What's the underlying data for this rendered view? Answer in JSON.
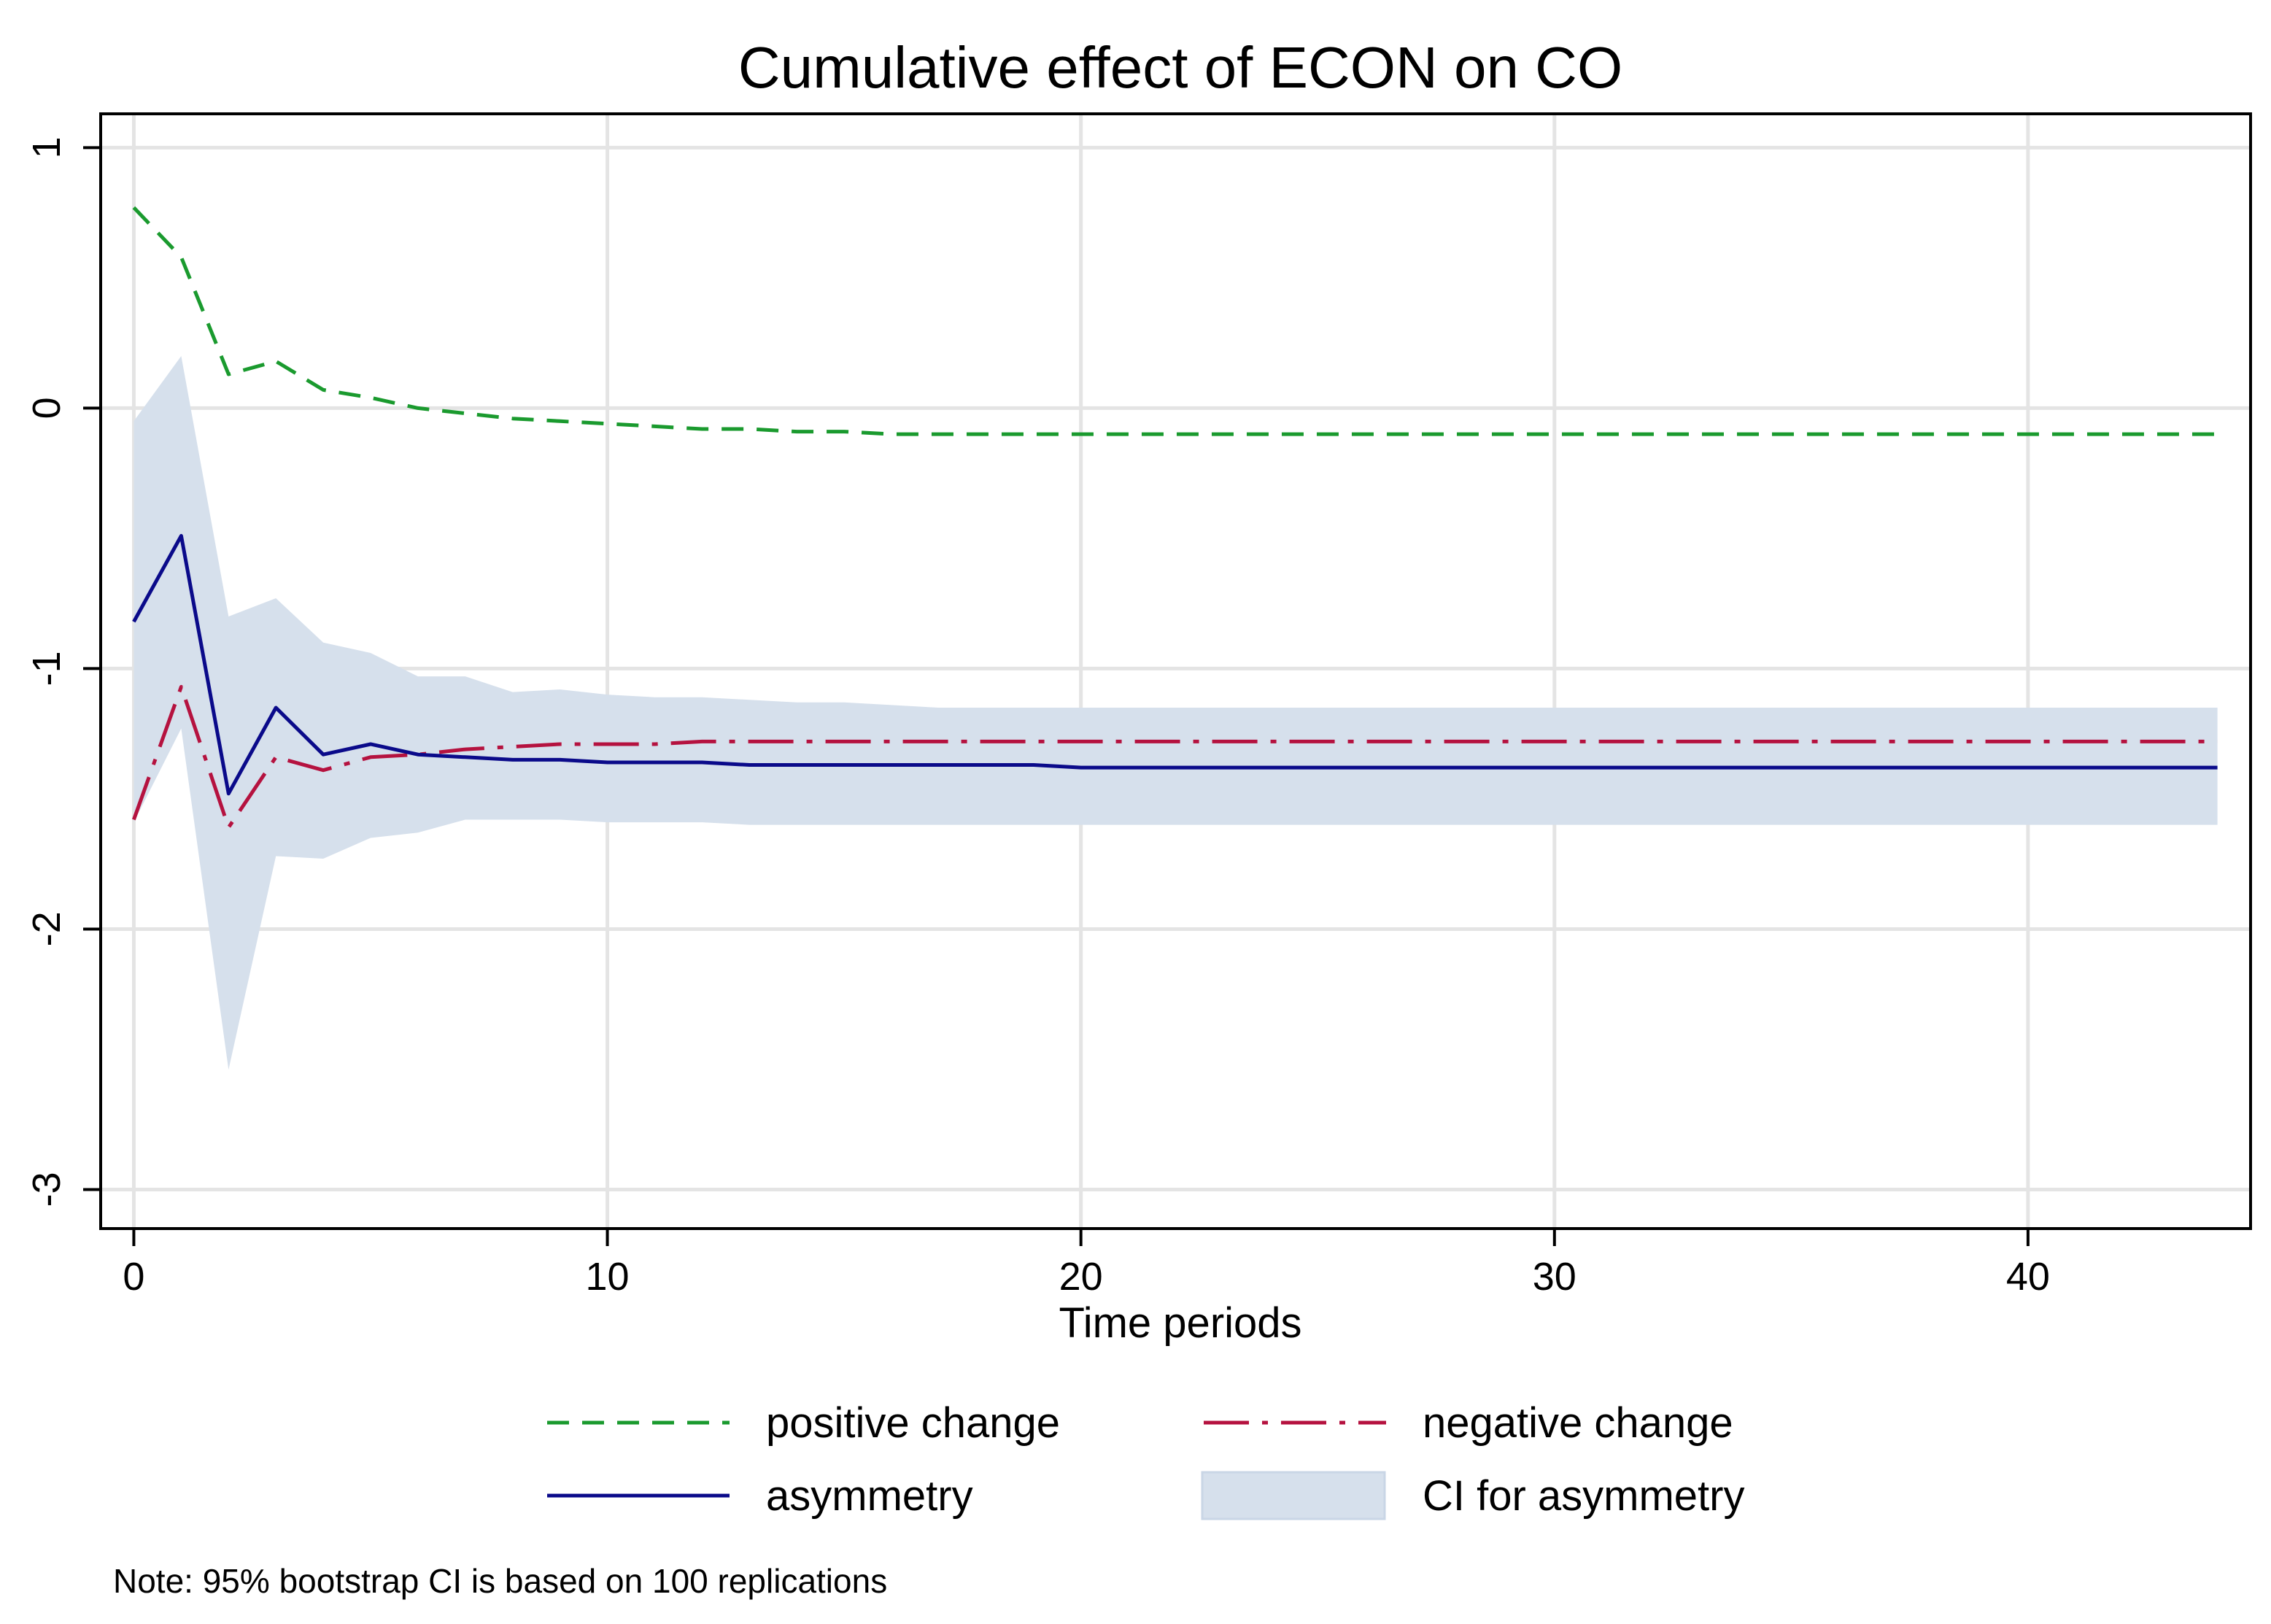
{
  "chart_data": {
    "type": "line",
    "title": "Cumulative effect of ECON on CO",
    "xlabel": "Time periods",
    "ylabel": "",
    "xlim": [
      -0.7,
      44.7
    ],
    "ylim": [
      -3.15,
      1.13
    ],
    "xticks": [
      0,
      10,
      20,
      30,
      40
    ],
    "yticks": [
      1,
      0,
      -1,
      -2,
      -3
    ],
    "xtick_labels": [
      "0",
      "10",
      "20",
      "30",
      "40"
    ],
    "ytick_labels": [
      "1",
      "0",
      "-1",
      "-2",
      "-3"
    ],
    "grid": true,
    "note": "Note: 95% bootstrap CI is based on 100 replications",
    "legend_position": "bottom",
    "x": [
      0,
      1,
      2,
      3,
      4,
      5,
      6,
      7,
      8,
      9,
      10,
      11,
      12,
      13,
      14,
      15,
      16,
      17,
      18,
      19,
      20,
      21,
      22,
      23,
      24,
      25,
      26,
      27,
      28,
      29,
      30,
      31,
      32,
      33,
      34,
      35,
      36,
      37,
      38,
      39,
      40,
      41,
      42,
      43,
      44
    ],
    "series": [
      {
        "name": "positive change",
        "style": "short-dash",
        "color": "#1a9a2e",
        "values": [
          0.77,
          0.58,
          0.13,
          0.18,
          0.07,
          0.04,
          0.0,
          -0.02,
          -0.04,
          -0.05,
          -0.06,
          -0.07,
          -0.08,
          -0.08,
          -0.09,
          -0.09,
          -0.1,
          -0.1,
          -0.1,
          -0.1,
          -0.1,
          -0.1,
          -0.1,
          -0.1,
          -0.1,
          -0.1,
          -0.1,
          -0.1,
          -0.1,
          -0.1,
          -0.1,
          -0.1,
          -0.1,
          -0.1,
          -0.1,
          -0.1,
          -0.1,
          -0.1,
          -0.1,
          -0.1,
          -0.1,
          -0.1,
          -0.1,
          -0.1,
          -0.1
        ]
      },
      {
        "name": "negative change",
        "style": "long-dash-dot",
        "color": "#b5123f",
        "values": [
          -1.58,
          -1.07,
          -1.61,
          -1.34,
          -1.39,
          -1.34,
          -1.33,
          -1.31,
          -1.3,
          -1.29,
          -1.29,
          -1.29,
          -1.28,
          -1.28,
          -1.28,
          -1.28,
          -1.28,
          -1.28,
          -1.28,
          -1.28,
          -1.28,
          -1.28,
          -1.28,
          -1.28,
          -1.28,
          -1.28,
          -1.28,
          -1.28,
          -1.28,
          -1.28,
          -1.28,
          -1.28,
          -1.28,
          -1.28,
          -1.28,
          -1.28,
          -1.28,
          -1.28,
          -1.28,
          -1.28,
          -1.28,
          -1.28,
          -1.28,
          -1.28,
          -1.28
        ]
      },
      {
        "name": "asymmetry",
        "style": "solid",
        "color": "#0a0a8a",
        "values": [
          -0.82,
          -0.49,
          -1.48,
          -1.15,
          -1.33,
          -1.29,
          -1.33,
          -1.34,
          -1.35,
          -1.35,
          -1.36,
          -1.36,
          -1.36,
          -1.37,
          -1.37,
          -1.37,
          -1.37,
          -1.37,
          -1.37,
          -1.37,
          -1.38,
          -1.38,
          -1.38,
          -1.38,
          -1.38,
          -1.38,
          -1.38,
          -1.38,
          -1.38,
          -1.38,
          -1.38,
          -1.38,
          -1.38,
          -1.38,
          -1.38,
          -1.38,
          -1.38,
          -1.38,
          -1.38,
          -1.38,
          -1.38,
          -1.38,
          -1.38,
          -1.38,
          -1.38
        ]
      }
    ],
    "ci": {
      "name": "CI for asymmetry",
      "color": "#d6e0ec",
      "upper": [
        -0.05,
        0.2,
        -0.8,
        -0.73,
        -0.9,
        -0.94,
        -1.03,
        -1.03,
        -1.09,
        -1.08,
        -1.1,
        -1.11,
        -1.11,
        -1.12,
        -1.13,
        -1.13,
        -1.14,
        -1.15,
        -1.15,
        -1.15,
        -1.15,
        -1.15,
        -1.15,
        -1.15,
        -1.15,
        -1.15,
        -1.15,
        -1.15,
        -1.15,
        -1.15,
        -1.15,
        -1.15,
        -1.15,
        -1.15,
        -1.15,
        -1.15,
        -1.15,
        -1.15,
        -1.15,
        -1.15,
        -1.15,
        -1.15,
        -1.15,
        -1.15,
        -1.15
      ],
      "lower": [
        -1.59,
        -1.23,
        -2.54,
        -1.72,
        -1.73,
        -1.65,
        -1.63,
        -1.58,
        -1.58,
        -1.58,
        -1.59,
        -1.59,
        -1.59,
        -1.6,
        -1.6,
        -1.6,
        -1.6,
        -1.6,
        -1.6,
        -1.6,
        -1.6,
        -1.6,
        -1.6,
        -1.6,
        -1.6,
        -1.6,
        -1.6,
        -1.6,
        -1.6,
        -1.6,
        -1.6,
        -1.6,
        -1.6,
        -1.6,
        -1.6,
        -1.6,
        -1.6,
        -1.6,
        -1.6,
        -1.6,
        -1.6,
        -1.6,
        -1.6,
        -1.6,
        -1.6
      ]
    }
  }
}
